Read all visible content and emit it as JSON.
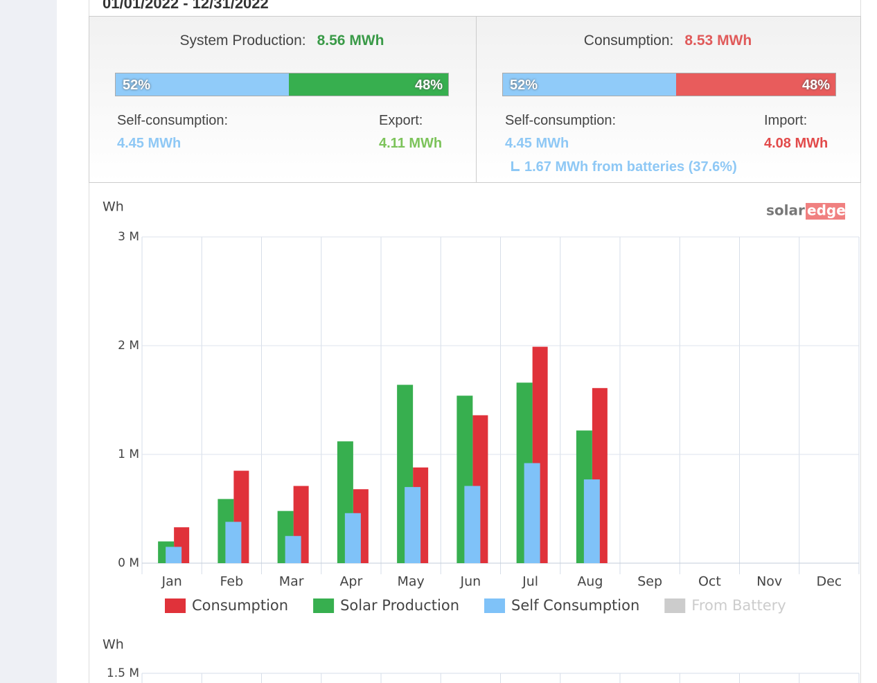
{
  "header": {
    "date_range": "01/01/2022 - 12/31/2022"
  },
  "production": {
    "label": "System Production:",
    "total": "8.56 MWh",
    "split": [
      {
        "value": 52,
        "label": "52%"
      },
      {
        "value": 48,
        "label": "48%"
      }
    ],
    "self_label": "Self-consumption:",
    "self_value": "4.45 MWh",
    "export_label": "Export:",
    "export_value": "4.11 MWh"
  },
  "consumption": {
    "label": "Consumption:",
    "total": "8.53 MWh",
    "split": [
      {
        "value": 52,
        "label": "52%"
      },
      {
        "value": 48,
        "label": "48%"
      }
    ],
    "self_label": "Self-consumption:",
    "self_value": "4.45 MWh",
    "import_label": "Import:",
    "import_value": "4.08 MWh",
    "battery_note": "1.67 MWh from batteries (37.6%)"
  },
  "logo": {
    "part1": "solar",
    "part2": "edge"
  },
  "chart_data": {
    "type": "bar",
    "y_label": "Wh",
    "categories": [
      "Jan",
      "Feb",
      "Mar",
      "Apr",
      "May",
      "Jun",
      "Jul",
      "Aug",
      "Sep",
      "Oct",
      "Nov",
      "Dec"
    ],
    "series": [
      {
        "name": "Consumption",
        "color": "#e0323a",
        "values": [
          330000,
          850000,
          710000,
          680000,
          880000,
          1360000,
          1990000,
          1610000,
          null,
          null,
          null,
          null
        ]
      },
      {
        "name": "Solar Production",
        "color": "#37af4f",
        "values": [
          200000,
          590000,
          480000,
          1120000,
          1640000,
          1540000,
          1660000,
          1220000,
          null,
          null,
          null,
          null
        ]
      },
      {
        "name": "Self Consumption",
        "color": "#7fc2f8",
        "values": [
          150000,
          380000,
          250000,
          460000,
          700000,
          710000,
          920000,
          770000,
          null,
          null,
          null,
          null
        ]
      },
      {
        "name": "From Battery",
        "color": "#cccccc",
        "visible": false,
        "values": [
          null,
          null,
          null,
          null,
          null,
          null,
          null,
          null,
          null,
          null,
          null,
          null
        ]
      }
    ],
    "ylim": [
      0,
      3000000
    ],
    "yticks": [
      {
        "value": 0,
        "label": "0 M"
      },
      {
        "value": 1000000,
        "label": "1 M"
      },
      {
        "value": 2000000,
        "label": "2 M"
      },
      {
        "value": 3000000,
        "label": "3 M"
      }
    ],
    "grid": true
  },
  "next_chart": {
    "y_label": "Wh",
    "top_tick": "1.5 M"
  }
}
